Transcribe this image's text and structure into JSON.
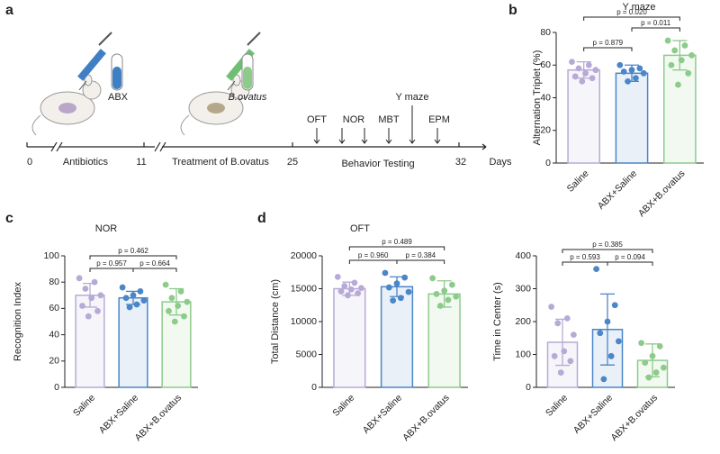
{
  "panel_labels": [
    "a",
    "b",
    "c",
    "d"
  ],
  "timeline": {
    "days": [
      0,
      11,
      25,
      32
    ],
    "unit": "Days",
    "phases": [
      "Antibiotics",
      "Treatment of B.ovatus",
      "Behavior Testing"
    ],
    "tests": [
      "OFT",
      "NOR",
      "MBT",
      "Y maze",
      "EPM"
    ],
    "reagents": [
      "ABX",
      "B.ovatus"
    ]
  },
  "chart_data": [
    {
      "type": "bar",
      "title": "Y maze",
      "y_label": "Alternation Triplet (%)",
      "categories": [
        "Saline",
        "ABX+Saline",
        "ABX+B.ovatus"
      ],
      "colors": [
        "#b8aad6",
        "#4a86c8",
        "#8dcb8a"
      ],
      "values": [
        57,
        55,
        66
      ],
      "errors": [
        5,
        5,
        9
      ],
      "points": [
        [
          62,
          60,
          58,
          57,
          55,
          53,
          52,
          50
        ],
        [
          60,
          58,
          57,
          56,
          55,
          52,
          50
        ],
        [
          75,
          72,
          69,
          66,
          63,
          60,
          55,
          48
        ]
      ],
      "annotations": [
        "p = 0.879",
        "p = 0.020",
        "p = 0.011"
      ],
      "ylim": [
        0,
        80
      ],
      "yticks": [
        0,
        20,
        40,
        60,
        80
      ]
    },
    {
      "type": "bar",
      "title": "NOR",
      "y_label": "Recognition Index",
      "categories": [
        "Saline",
        "ABX+Saline",
        "ABX+B.ovatus"
      ],
      "colors": [
        "#b8aad6",
        "#4a86c8",
        "#8dcb8a"
      ],
      "values": [
        70,
        68,
        65
      ],
      "errors": [
        9,
        5,
        10
      ],
      "points": [
        [
          83,
          80,
          75,
          70,
          68,
          62,
          58,
          54
        ],
        [
          76,
          73,
          70,
          68,
          66,
          63,
          61
        ],
        [
          78,
          73,
          68,
          65,
          62,
          58,
          54,
          50
        ]
      ],
      "annotations": [
        "p = 0.462",
        "p = 0.957",
        "p = 0.664"
      ],
      "ylim": [
        0,
        100
      ],
      "yticks": [
        0,
        20,
        40,
        60,
        80,
        100
      ]
    },
    {
      "type": "bar",
      "title": "OFT",
      "y_label": "Total Distance (cm)",
      "categories": [
        "Saline",
        "ABX+Saline",
        "ABX+B.ovatus"
      ],
      "colors": [
        "#b8aad6",
        "#4a86c8",
        "#8dcb8a"
      ],
      "values": [
        15000,
        15300,
        14200
      ],
      "errors": [
        1000,
        1500,
        2000
      ],
      "points": [
        [
          16800,
          15900,
          15400,
          15100,
          14900,
          14600,
          14300,
          14000
        ],
        [
          17400,
          16700,
          15800,
          15200,
          14500,
          13600,
          13200
        ],
        [
          16600,
          15600,
          14700,
          14200,
          13800,
          13300,
          12400
        ]
      ],
      "annotations": [
        "p = 0.489",
        "p = 0.960",
        "p = 0.384"
      ],
      "ylim": [
        0,
        20000
      ],
      "yticks": [
        0,
        5000,
        10000,
        15000,
        20000
      ]
    },
    {
      "type": "bar",
      "title": null,
      "y_label": "Time in Center (s)",
      "categories": [
        "Saline",
        "ABX+Saline",
        "ABX+B.ovatus"
      ],
      "colors": [
        "#b8aad6",
        "#4a86c8",
        "#8dcb8a"
      ],
      "values": [
        137,
        176,
        82
      ],
      "errors": [
        70,
        108,
        50
      ],
      "points": [
        [
          245,
          210,
          195,
          160,
          110,
          95,
          80,
          45
        ],
        [
          360,
          250,
          200,
          165,
          140,
          95,
          25
        ],
        [
          135,
          125,
          95,
          75,
          60,
          45,
          30
        ]
      ],
      "annotations": [
        "p = 0.385",
        "p = 0.593",
        "p = 0.094"
      ],
      "ylim": [
        0,
        400
      ],
      "yticks": [
        0,
        100,
        200,
        300,
        400
      ]
    }
  ]
}
